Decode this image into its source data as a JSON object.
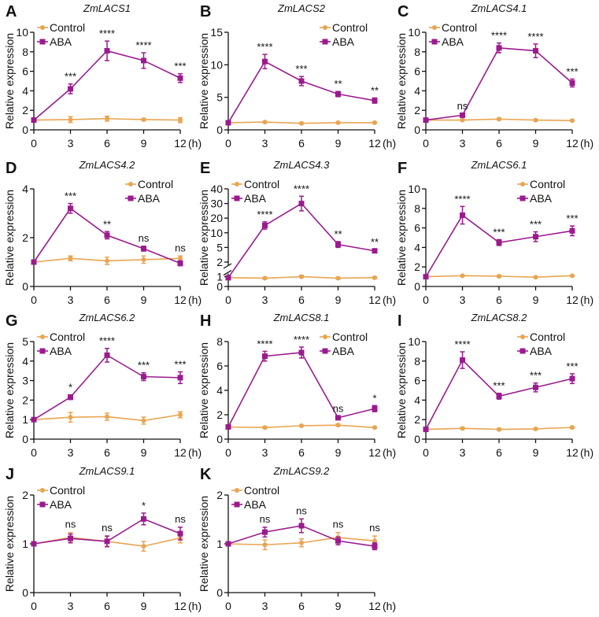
{
  "colors": {
    "Control": "#E8A552",
    "ABA": "#9B1B8E",
    "axis": "#111111"
  },
  "chart_data": [
    {
      "panel": "A",
      "title": "ZmLACS1",
      "type": "line",
      "x": [
        0,
        3,
        6,
        9,
        12
      ],
      "xunit": "(h)",
      "ylabel": "Relative expression",
      "ylim": [
        0,
        10
      ],
      "yticks": [
        0,
        2,
        4,
        6,
        8,
        10
      ],
      "legend": "top-left",
      "series": [
        {
          "name": "Control",
          "values": [
            1,
            1.05,
            1.15,
            1.05,
            1.0
          ],
          "errors": [
            0,
            0.3,
            0.25,
            0.1,
            0.25
          ]
        },
        {
          "name": "ABA",
          "values": [
            1,
            4.2,
            8.1,
            7.1,
            5.3
          ],
          "errors": [
            0,
            0.5,
            1.0,
            0.8,
            0.45
          ]
        }
      ],
      "significance": [
        "",
        "***",
        "****",
        "****",
        "***"
      ]
    },
    {
      "panel": "B",
      "title": "ZmLACS2",
      "type": "line",
      "x": [
        0,
        3,
        6,
        9,
        12
      ],
      "xunit": "(h)",
      "ylabel": "Relative expression",
      "ylim": [
        0,
        15
      ],
      "yticks": [
        0,
        5,
        10,
        15
      ],
      "legend": "top-right",
      "series": [
        {
          "name": "Control",
          "values": [
            1.1,
            1.2,
            1.0,
            1.1,
            1.1
          ],
          "errors": [
            0,
            0.1,
            0.1,
            0.1,
            0.1
          ]
        },
        {
          "name": "ABA",
          "values": [
            1.1,
            10.5,
            7.5,
            5.5,
            4.5
          ],
          "errors": [
            0,
            1.1,
            0.7,
            0.4,
            0.4
          ]
        }
      ],
      "significance": [
        "",
        "****",
        "***",
        "**",
        "**"
      ]
    },
    {
      "panel": "C",
      "title": "ZmLACS4.1",
      "type": "line",
      "x": [
        0,
        3,
        6,
        9,
        12
      ],
      "xunit": "(h)",
      "ylabel": "Relative expression",
      "ylim": [
        0,
        10
      ],
      "yticks": [
        0,
        2,
        4,
        6,
        8,
        10
      ],
      "legend": "top-left",
      "series": [
        {
          "name": "Control",
          "values": [
            1,
            1.0,
            1.1,
            1.0,
            0.95
          ],
          "errors": [
            0,
            0.05,
            0.1,
            0.05,
            0.05
          ]
        },
        {
          "name": "ABA",
          "values": [
            1,
            1.5,
            8.4,
            8.1,
            4.8
          ],
          "errors": [
            0,
            0.1,
            0.5,
            0.7,
            0.4
          ]
        }
      ],
      "significance": [
        "",
        "ns",
        "****",
        "****",
        "***"
      ]
    },
    {
      "panel": "D",
      "title": "ZmLACS4.2",
      "type": "line",
      "x": [
        0,
        3,
        6,
        9,
        12
      ],
      "xunit": "(h)",
      "ylabel": "Relative expression",
      "ylim": [
        0,
        4
      ],
      "yticks": [
        0,
        2,
        4
      ],
      "legend": "top-right",
      "series": [
        {
          "name": "Control",
          "values": [
            1,
            1.15,
            1.05,
            1.1,
            1.15
          ],
          "errors": [
            0,
            0.1,
            0.15,
            0.15,
            0.1
          ]
        },
        {
          "name": "ABA",
          "values": [
            1,
            3.2,
            2.1,
            1.55,
            0.95
          ],
          "errors": [
            0,
            0.2,
            0.15,
            0.1,
            0.1
          ]
        }
      ],
      "significance": [
        "",
        "***",
        "**",
        "ns",
        "ns"
      ]
    },
    {
      "panel": "E",
      "title": "ZmLACS4.3",
      "type": "line",
      "x": [
        0,
        3,
        6,
        9,
        12
      ],
      "xunit": "(h)",
      "ylabel": "Relative expression",
      "ylim": [
        0,
        40
      ],
      "yticks": [
        0,
        1,
        2,
        5,
        10,
        20,
        30,
        40
      ],
      "axis_break": [
        1,
        2
      ],
      "legend": "top-left",
      "series": [
        {
          "name": "Control",
          "values": [
            0.9,
            0.85,
            1.0,
            0.85,
            0.9
          ],
          "errors": [
            0,
            0.1,
            0.1,
            0.1,
            0.1
          ]
        },
        {
          "name": "ABA",
          "values": [
            0.9,
            15,
            30,
            6,
            4.3
          ],
          "errors": [
            0,
            2.5,
            5,
            1,
            0.3
          ]
        }
      ],
      "significance": [
        "",
        "****",
        "****",
        "**",
        "**"
      ]
    },
    {
      "panel": "F",
      "title": "ZmLACS6.1",
      "type": "line",
      "x": [
        0,
        3,
        6,
        9,
        12
      ],
      "xunit": "(h)",
      "ylabel": "Relative expression",
      "ylim": [
        0,
        10
      ],
      "yticks": [
        0,
        2,
        4,
        6,
        8,
        10
      ],
      "legend": "top-right",
      "series": [
        {
          "name": "Control",
          "values": [
            1,
            1.1,
            1.05,
            0.95,
            1.1
          ],
          "errors": [
            0,
            0.05,
            0.1,
            0.05,
            0.05
          ]
        },
        {
          "name": "ABA",
          "values": [
            1,
            7.3,
            4.5,
            5.1,
            5.7
          ],
          "errors": [
            0,
            0.9,
            0.3,
            0.5,
            0.5
          ]
        }
      ],
      "significance": [
        "",
        "****",
        "***",
        "***",
        "***"
      ]
    },
    {
      "panel": "G",
      "title": "ZmLACS6.2",
      "type": "line",
      "x": [
        0,
        3,
        6,
        9,
        12
      ],
      "xunit": "(h)",
      "ylabel": "Relative expression",
      "ylim": [
        0,
        5
      ],
      "yticks": [
        0,
        1,
        2,
        3,
        4,
        5
      ],
      "legend": "top-left",
      "series": [
        {
          "name": "Control",
          "values": [
            1,
            1.12,
            1.15,
            0.95,
            1.25
          ],
          "errors": [
            0,
            0.25,
            0.18,
            0.18,
            0.15
          ]
        },
        {
          "name": "ABA",
          "values": [
            1,
            2.15,
            4.3,
            3.2,
            3.15
          ],
          "errors": [
            0,
            0.12,
            0.35,
            0.2,
            0.3
          ]
        }
      ],
      "significance": [
        "",
        "*",
        "****",
        "***",
        "***"
      ]
    },
    {
      "panel": "H",
      "title": "ZmLACS8.1",
      "type": "line",
      "x": [
        0,
        3,
        6,
        9,
        12
      ],
      "xunit": "(h)",
      "ylabel": "Relative expression",
      "ylim": [
        0,
        8
      ],
      "yticks": [
        0,
        2,
        4,
        6,
        8
      ],
      "legend": "top-right",
      "series": [
        {
          "name": "Control",
          "values": [
            1,
            0.95,
            1.1,
            1.15,
            0.95
          ],
          "errors": [
            0,
            0.1,
            0.05,
            0.1,
            0.05
          ]
        },
        {
          "name": "ABA",
          "values": [
            1,
            6.8,
            7.1,
            1.75,
            2.5
          ],
          "errors": [
            0,
            0.4,
            0.45,
            0.1,
            0.25
          ]
        }
      ],
      "significance": [
        "",
        "****",
        "****",
        "ns",
        "*"
      ]
    },
    {
      "panel": "I",
      "title": "ZmLACS8.2",
      "type": "line",
      "x": [
        0,
        3,
        6,
        9,
        12
      ],
      "xunit": "(h)",
      "ylabel": "Relative expression",
      "ylim": [
        0,
        10
      ],
      "yticks": [
        0,
        2,
        4,
        6,
        8,
        10
      ],
      "legend": "top-right",
      "series": [
        {
          "name": "Control",
          "values": [
            1,
            1.1,
            1.0,
            1.05,
            1.2
          ],
          "errors": [
            0,
            0.1,
            0.1,
            0.1,
            0.1
          ]
        },
        {
          "name": "ABA",
          "values": [
            1,
            8.1,
            4.4,
            5.3,
            6.2
          ],
          "errors": [
            0,
            0.85,
            0.3,
            0.45,
            0.5
          ]
        }
      ],
      "significance": [
        "",
        "****",
        "***",
        "***",
        "***"
      ]
    },
    {
      "panel": "J",
      "title": "ZmLACS9.1",
      "type": "line",
      "x": [
        0,
        3,
        6,
        9,
        12
      ],
      "xunit": "(h)",
      "ylabel": "Relative expression",
      "ylim": [
        0,
        2
      ],
      "yticks": [
        0,
        1,
        2
      ],
      "legend": "top-left",
      "series": [
        {
          "name": "Control",
          "values": [
            1,
            1.13,
            1.05,
            0.95,
            1.12
          ],
          "errors": [
            0,
            0.1,
            0.1,
            0.1,
            0.1
          ]
        },
        {
          "name": "ABA",
          "values": [
            1,
            1.11,
            1.05,
            1.51,
            1.21
          ],
          "errors": [
            0,
            0.09,
            0.11,
            0.12,
            0.13
          ]
        }
      ],
      "significance": [
        "",
        "ns",
        "ns",
        "*",
        "ns"
      ]
    },
    {
      "panel": "K",
      "title": "ZmLACS9.2",
      "type": "line",
      "x": [
        0,
        3,
        6,
        9,
        12
      ],
      "xunit": "(h)",
      "ylabel": "Relative expression",
      "ylim": [
        0,
        2
      ],
      "yticks": [
        0,
        1,
        2
      ],
      "legend": "top-left",
      "series": [
        {
          "name": "Control",
          "values": [
            1,
            0.98,
            1.02,
            1.13,
            1.06
          ],
          "errors": [
            0,
            0.1,
            0.08,
            0.1,
            0.1
          ]
        },
        {
          "name": "ABA",
          "values": [
            1,
            1.24,
            1.37,
            1.06,
            0.95
          ],
          "errors": [
            0,
            0.1,
            0.14,
            0.08,
            0.07
          ]
        }
      ],
      "significance": [
        "",
        "ns",
        "ns",
        "ns",
        "ns"
      ]
    }
  ]
}
